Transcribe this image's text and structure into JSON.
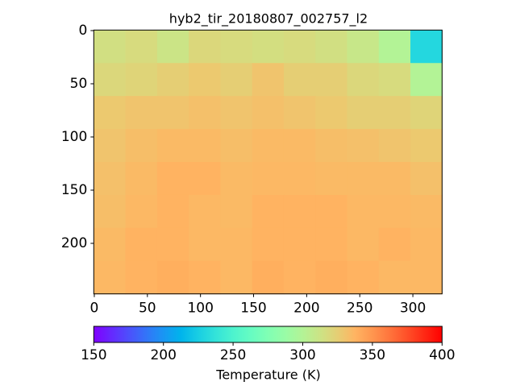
{
  "chart_data": {
    "type": "heatmap",
    "title": "hyb2_tir_20180807_002757_l2",
    "colormap": "rainbow",
    "values": [
      [
        315,
        318,
        312,
        320,
        318,
        316,
        318,
        315,
        310,
        300,
        230
      ],
      [
        320,
        322,
        325,
        328,
        325,
        330,
        325,
        325,
        320,
        318,
        300
      ],
      [
        328,
        330,
        330,
        332,
        330,
        332,
        330,
        328,
        325,
        325,
        322
      ],
      [
        330,
        333,
        335,
        335,
        333,
        335,
        335,
        333,
        332,
        330,
        328
      ],
      [
        332,
        335,
        338,
        338,
        335,
        336,
        336,
        335,
        335,
        335,
        332
      ],
      [
        333,
        336,
        338,
        336,
        335,
        338,
        338,
        338,
        336,
        336,
        335
      ],
      [
        335,
        338,
        338,
        336,
        336,
        338,
        338,
        338,
        336,
        338,
        336
      ],
      [
        336,
        338,
        340,
        338,
        336,
        340,
        338,
        340,
        338,
        336,
        336
      ]
    ],
    "xlim": [
      -0.5,
      327.5
    ],
    "xticks": [
      0,
      50,
      100,
      150,
      200,
      250,
      300
    ],
    "ylim": [
      247.5,
      -0.5
    ],
    "yticks": [
      0,
      50,
      100,
      150,
      200
    ],
    "colorbar": {
      "label": "Temperature (K)",
      "lim": [
        150,
        400
      ],
      "ticks": [
        150,
        200,
        250,
        300,
        350,
        400
      ]
    }
  }
}
